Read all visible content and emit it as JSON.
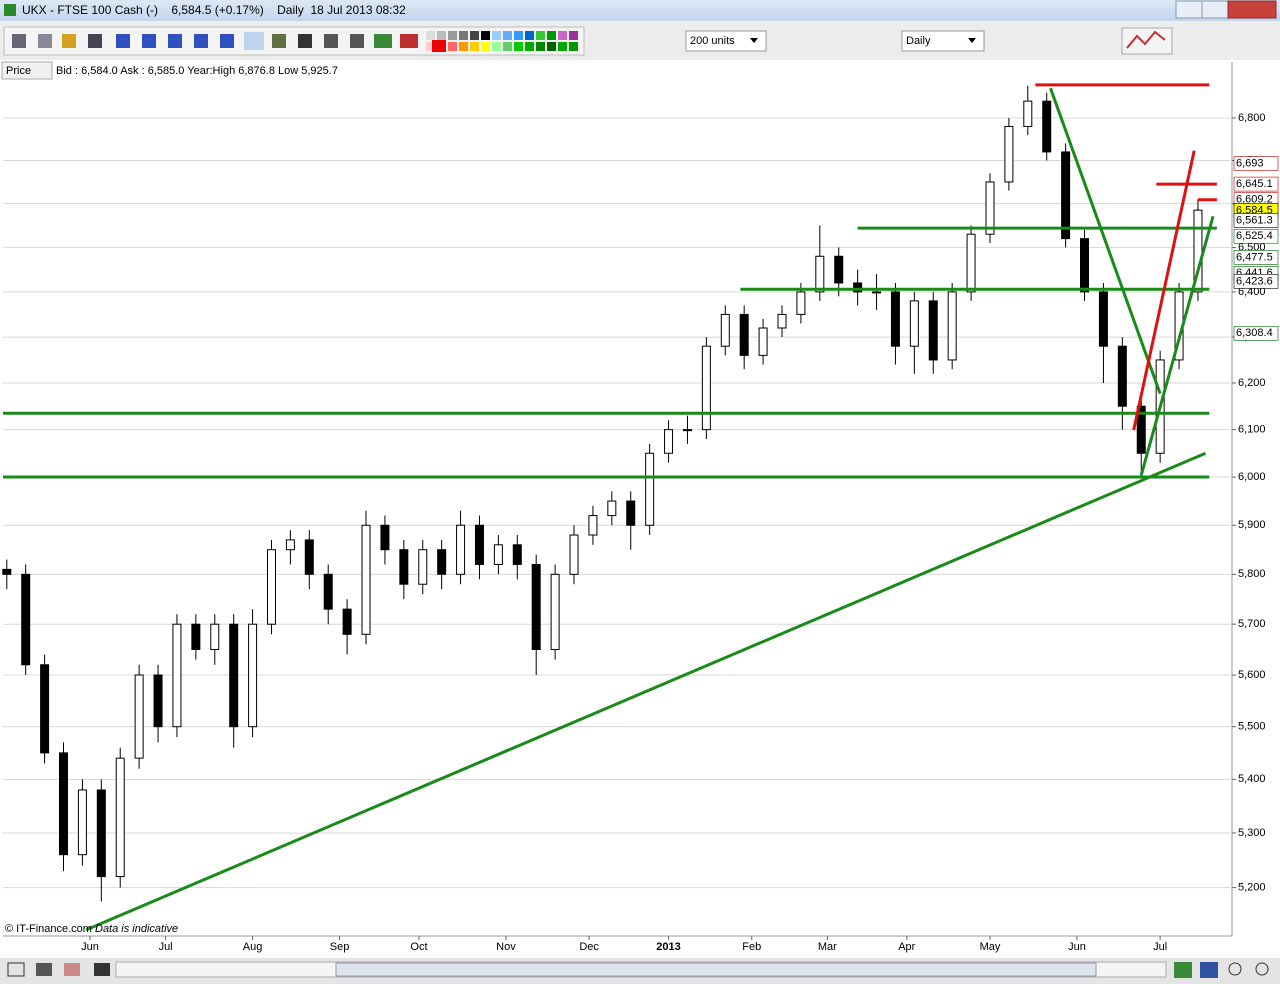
{
  "window_title": "UKX - FTSE 100 Cash (-)    6,584.5 (+0.17%)    Daily  18 Jul 2013 08:32",
  "toolbar": {
    "units": "200 units",
    "interval": "Daily"
  },
  "info_bar": {
    "label": "Price",
    "text": "Bid : 6,584.0 Ask : 6,585.0 Year:High 6,876.8 Low 5,925.7"
  },
  "footer": {
    "source": "© IT-Finance.com",
    "note": "Data is indicative"
  },
  "chart_data": {
    "type": "candlestick",
    "log_scale": true,
    "grid": true,
    "x": [
      1,
      6,
      11,
      16,
      21,
      26,
      31,
      36,
      41,
      46,
      51,
      56,
      61,
      66,
      71,
      76,
      81,
      86,
      91,
      96,
      101,
      106,
      111,
      116,
      121,
      126,
      131,
      136,
      141,
      146,
      151,
      156,
      161,
      166,
      171,
      176,
      181,
      186,
      191,
      196,
      201,
      206,
      211,
      216,
      221,
      226,
      231,
      236,
      241,
      246,
      251,
      256,
      261,
      266,
      271,
      276,
      281,
      286,
      291,
      296,
      301,
      306,
      311,
      316
    ],
    "open": [
      5810,
      5800,
      5620,
      5450,
      5260,
      5380,
      5220,
      5440,
      5600,
      5500,
      5700,
      5650,
      5700,
      5500,
      5700,
      5850,
      5870,
      5800,
      5730,
      5680,
      5900,
      5850,
      5780,
      5850,
      5800,
      5900,
      5820,
      5860,
      5820,
      5650,
      5800,
      5880,
      5920,
      5950,
      5900,
      6050,
      6100,
      6100,
      6280,
      6350,
      6260,
      6320,
      6350,
      6400,
      6480,
      6420,
      6400,
      6400,
      6280,
      6380,
      6250,
      6400,
      6530,
      6650,
      6780,
      6840,
      6720,
      6520,
      6400,
      6280,
      6150,
      6050,
      6250,
      6400
    ],
    "high": [
      5830,
      5820,
      5640,
      5470,
      5400,
      5400,
      5460,
      5620,
      5620,
      5720,
      5720,
      5720,
      5720,
      5730,
      5870,
      5890,
      5890,
      5820,
      5750,
      5930,
      5920,
      5870,
      5870,
      5870,
      5930,
      5920,
      5880,
      5880,
      5840,
      5820,
      5900,
      5940,
      5970,
      5970,
      6070,
      6120,
      6130,
      6300,
      6370,
      6370,
      6340,
      6370,
      6420,
      6550,
      6500,
      6450,
      6440,
      6420,
      6400,
      6400,
      6420,
      6550,
      6670,
      6800,
      6877,
      6860,
      6740,
      6540,
      6420,
      6300,
      6170,
      6270,
      6420,
      6610
    ],
    "low": [
      5770,
      5600,
      5430,
      5230,
      5240,
      5175,
      5200,
      5420,
      5470,
      5480,
      5630,
      5620,
      5460,
      5480,
      5680,
      5820,
      5770,
      5700,
      5640,
      5660,
      5820,
      5750,
      5760,
      5770,
      5780,
      5790,
      5800,
      5790,
      5600,
      5630,
      5780,
      5860,
      5900,
      5850,
      5880,
      6030,
      6070,
      6080,
      6260,
      6230,
      6240,
      6300,
      6330,
      6380,
      6390,
      6370,
      6360,
      6240,
      6220,
      6220,
      6230,
      6380,
      6510,
      6630,
      6760,
      6700,
      6500,
      6380,
      6200,
      6100,
      6000,
      6030,
      6230,
      6380
    ],
    "close": [
      5800,
      5620,
      5450,
      5260,
      5380,
      5220,
      5440,
      5600,
      5500,
      5700,
      5650,
      5700,
      5500,
      5700,
      5850,
      5870,
      5800,
      5730,
      5680,
      5900,
      5850,
      5780,
      5850,
      5800,
      5900,
      5820,
      5860,
      5820,
      5650,
      5800,
      5880,
      5920,
      5950,
      5900,
      6050,
      6100,
      6100,
      6280,
      6350,
      6260,
      6320,
      6350,
      6400,
      6480,
      6420,
      6400,
      6400,
      6280,
      6380,
      6250,
      6400,
      6530,
      6650,
      6780,
      6840,
      6720,
      6520,
      6400,
      6280,
      6150,
      6050,
      6250,
      6400,
      6585
    ],
    "up_color": "#ffffff",
    "down_color": "#000000",
    "xlim": [
      0,
      325
    ],
    "ylim": [
      5113,
      6934
    ],
    "xticks": [
      {
        "value": 23,
        "label": "Jun"
      },
      {
        "value": 43,
        "label": "Jul"
      },
      {
        "value": 66,
        "label": "Aug"
      },
      {
        "value": 89,
        "label": "Sep"
      },
      {
        "value": 110,
        "label": "Oct"
      },
      {
        "value": 133,
        "label": "Nov"
      },
      {
        "value": 155,
        "label": "Dec"
      },
      {
        "value": 176,
        "label": "2013"
      },
      {
        "value": 198,
        "label": "Feb"
      },
      {
        "value": 218,
        "label": "Mar"
      },
      {
        "value": 239,
        "label": "Apr"
      },
      {
        "value": 261,
        "label": "May"
      },
      {
        "value": 284,
        "label": "Jun"
      },
      {
        "value": 306,
        "label": "Jul"
      }
    ],
    "yticks": [
      {
        "value": 5200,
        "label": "5,200"
      },
      {
        "value": 5300,
        "label": "5,300"
      },
      {
        "value": 5400,
        "label": "5,400"
      },
      {
        "value": 5500,
        "label": "5,500"
      },
      {
        "value": 5600,
        "label": "5,600"
      },
      {
        "value": 5700,
        "label": "5,700"
      },
      {
        "value": 5800,
        "label": "5,800"
      },
      {
        "value": 5900,
        "label": "5,900"
      },
      {
        "value": 6000,
        "label": "6,000"
      },
      {
        "value": 6100,
        "label": "6,100"
      },
      {
        "value": 6200,
        "label": "6,200"
      },
      {
        "value": 6300,
        "label": "6,300"
      },
      {
        "value": 6400,
        "label": "6,400"
      },
      {
        "value": 6500,
        "label": "6,500"
      },
      {
        "value": 6600,
        "label": "6,600"
      },
      {
        "value": 6700,
        "label": "6,700"
      },
      {
        "value": 6800,
        "label": "6,800"
      }
    ],
    "drawings": [
      {
        "color": "#1a8a1a",
        "x": [
          0,
          319
        ],
        "y": [
          6000,
          6000
        ]
      },
      {
        "color": "#1a8a1a",
        "x": [
          0,
          319
        ],
        "y": [
          6135,
          6135
        ]
      },
      {
        "color": "#1a8a1a",
        "x": [
          195,
          319
        ],
        "y": [
          6406,
          6406
        ]
      },
      {
        "color": "#1a8a1a",
        "x": [
          226,
          321
        ],
        "y": [
          6544,
          6544
        ]
      },
      {
        "color": "#e01010",
        "x": [
          273,
          319
        ],
        "y": [
          6879,
          6879
        ]
      },
      {
        "color": "#e01010",
        "x": [
          305,
          321
        ],
        "y": [
          6645,
          6645
        ]
      },
      {
        "color": "#e01010",
        "x": [
          316,
          321
        ],
        "y": [
          6609,
          6609
        ]
      },
      {
        "color": "#1a8a1a",
        "x": [
          22,
          318
        ],
        "y": [
          5124,
          6050
        ]
      },
      {
        "color": "#1a8a1a",
        "x": [
          277,
          306
        ],
        "y": [
          6871,
          6177
        ]
      },
      {
        "color": "#1a8a1a",
        "x": [
          301,
          320
        ],
        "y": [
          6004,
          6571
        ]
      },
      {
        "color": "#e01010",
        "x": [
          299,
          315
        ],
        "y": [
          6099,
          6723
        ]
      }
    ],
    "price_tags": [
      {
        "value": 6693,
        "label": "6,693",
        "color": "#c00000",
        "bg": "#ffffff"
      },
      {
        "value": 6645.1,
        "label": "6,645.1",
        "color": "#c00000",
        "bg": "#ffffff"
      },
      {
        "value": 6609.2,
        "label": "6,609.2",
        "color": "#c00000",
        "bg": "#ffffff"
      },
      {
        "value": 6584.5,
        "label": "6,584.5",
        "color": "#000000",
        "bg": "#ffff00"
      },
      {
        "value": 6561.3,
        "label": "6,561.3",
        "color": "#000000",
        "bg": "#ffffff"
      },
      {
        "value": 6525.4,
        "label": "6,525.4",
        "color": "#006000",
        "bg": "#ffffff"
      },
      {
        "value": 6477.5,
        "label": "6,477.5",
        "color": "#006000",
        "bg": "#ffffff"
      },
      {
        "value": 6441.6,
        "label": "6,441.6",
        "color": "#006000",
        "bg": "#ffffff"
      },
      {
        "value": 6423.6,
        "label": "6,423.6",
        "color": "#000000",
        "bg": "#ffffff"
      },
      {
        "value": 6308.4,
        "label": "6,308.4",
        "color": "#006000",
        "bg": "#ffffff"
      }
    ]
  }
}
